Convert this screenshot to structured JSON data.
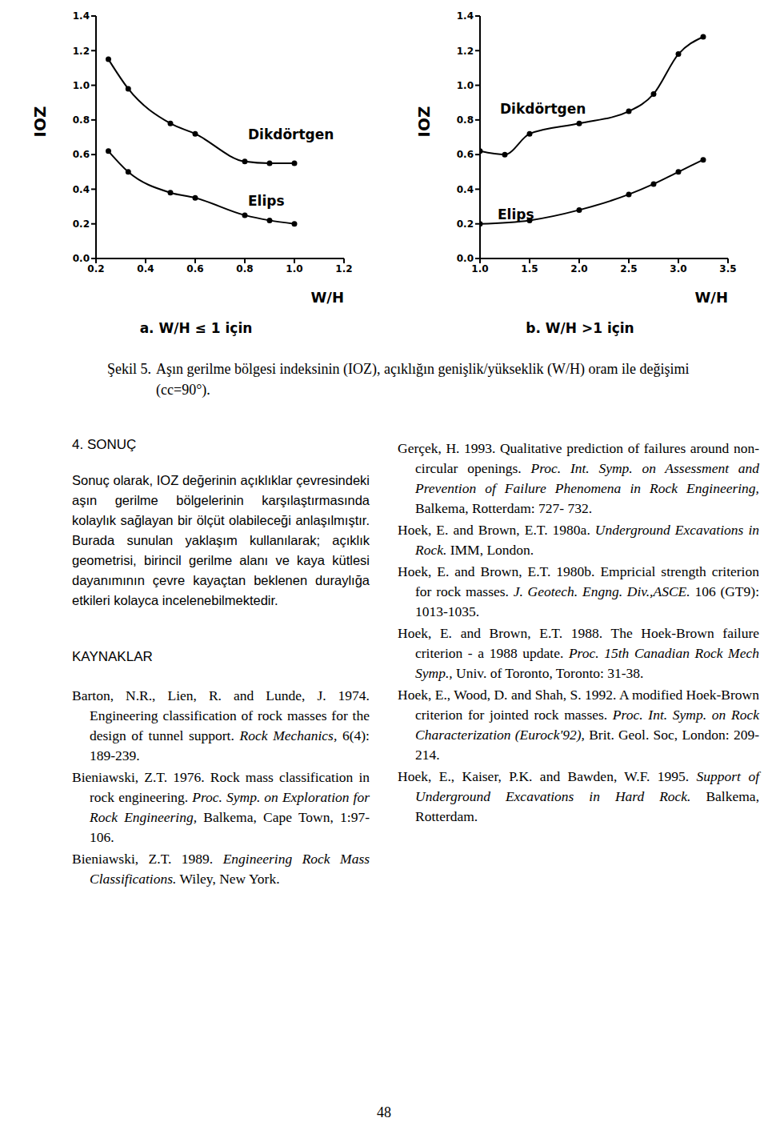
{
  "chart_data": [
    {
      "type": "line",
      "subtitle": "a. W/H ≤ 1 için",
      "x_label": "W/H",
      "y_label": "IOZ",
      "xlim": [
        0.2,
        1.2
      ],
      "xticks": [
        0.2,
        0.4,
        0.6,
        0.8,
        {
          "value": 1,
          "label": "1.0"
        },
        1.2
      ],
      "ylim": [
        0,
        1.4
      ],
      "yticks": [
        {
          "value": 0,
          "label": "0.0"
        },
        0.2,
        0.4,
        0.6,
        0.8,
        {
          "value": 1,
          "label": "1.0"
        },
        1.2,
        1.4
      ],
      "grid": false,
      "series": [
        {
          "name": "Dikdörtgen",
          "color": "#000000",
          "marker": "circle",
          "line_style": "solid",
          "x": [
            0.25,
            0.33,
            0.5,
            0.6,
            0.8,
            0.9,
            1.0
          ],
          "values": [
            1.15,
            0.98,
            0.78,
            0.72,
            0.56,
            0.55,
            0.55
          ]
        },
        {
          "name": "Elips",
          "color": "#000000",
          "marker": "circle",
          "line_style": "solid",
          "x": [
            0.25,
            0.33,
            0.5,
            0.6,
            0.8,
            0.9,
            1.0
          ],
          "values": [
            0.62,
            0.5,
            0.38,
            0.35,
            0.25,
            0.22,
            0.2
          ]
        }
      ]
    },
    {
      "type": "line",
      "subtitle": "b. W/H >1 için",
      "x_label": "W/H",
      "y_label": "IOZ",
      "xlim": [
        1.0,
        3.5
      ],
      "xticks": [
        {
          "value": 1,
          "label": "1.0"
        },
        1.5,
        {
          "value": 2,
          "label": "2.0"
        },
        2.5,
        {
          "value": 3,
          "label": "3.0"
        },
        3.5
      ],
      "ylim": [
        0,
        1.4
      ],
      "yticks": [
        {
          "value": 0,
          "label": "0.0"
        },
        0.2,
        0.4,
        0.6,
        0.8,
        {
          "value": 1,
          "label": "1.0"
        },
        1.2,
        1.4
      ],
      "grid": false,
      "series": [
        {
          "name": "Dikdörtgen",
          "color": "#000000",
          "marker": "circle",
          "line_style": "solid",
          "x": [
            1.0,
            1.25,
            1.5,
            2.0,
            2.5,
            2.75,
            3.0,
            3.25
          ],
          "values": [
            0.62,
            0.6,
            0.72,
            0.78,
            0.85,
            0.95,
            1.18,
            1.28
          ]
        },
        {
          "name": "Elips",
          "color": "#000000",
          "marker": "circle",
          "line_style": "solid",
          "x": [
            1.0,
            1.5,
            2.0,
            2.5,
            2.75,
            3.0,
            3.25
          ],
          "values": [
            0.2,
            0.22,
            0.28,
            0.37,
            0.43,
            0.5,
            0.57
          ]
        }
      ]
    }
  ],
  "caption": {
    "label": "Şekil 5.",
    "text": "Aşın gerilme bölgesi indeksinin (IOZ), açıklığın genişlik/yükseklik (W/H) oram ile değişimi (cc=90°)."
  },
  "left_column": {
    "section_title": "4. SONUÇ",
    "paragraph": "Sonuç olarak, IOZ değerinin açıklıklar çevresindeki aşın gerilme bölgelerinin karşılaştırmasında kolaylık sağlayan bir ölçüt olabileceği anlaşılmıştır. Burada sunulan yaklaşım kullanılarak; açıklık geometrisi, birincil gerilme alanı ve kaya kütlesi dayanımının çevre kayaçtan beklenen duraylığa etkileri kolayca incelenebilmektedir.",
    "references_title": "KAYNAKLAR",
    "references": [
      [
        [
          "Barton, N.R., Lien, R. and Lunde, J. 1974. Engineering classification of rock masses for the design of tunnel support. ",
          false
        ],
        [
          "Rock Mechanics,",
          true
        ],
        [
          " 6(4): 189-239.",
          false
        ]
      ],
      [
        [
          "Bieniawski, Z.T. 1976. Rock mass classification in rock engineering. ",
          false
        ],
        [
          "Proc. Symp. on Exploration for Rock Engineering,",
          true
        ],
        [
          " Balkema, Cape Town, 1:97-106.",
          false
        ]
      ],
      [
        [
          "Bieniawski, Z.T. 1989. ",
          false
        ],
        [
          "Engineering Rock Mass Classifications.",
          true
        ],
        [
          " Wiley, New York.",
          false
        ]
      ]
    ]
  },
  "right_column": {
    "references": [
      [
        [
          "Gerçek, H. 1993. Qualitative prediction of failures around non-circular openings. ",
          false
        ],
        [
          "Proc. Int. Symp. on Assessment and Prevention of Failure Phenomena in Rock Engineering,",
          true
        ],
        [
          " Balkema, Rotterdam: 727- 732.",
          false
        ]
      ],
      [
        [
          "Hoek, E. and Brown, E.T. 1980a. ",
          false
        ],
        [
          "Underground Excavations in Rock.",
          true
        ],
        [
          " IMM, London.",
          false
        ]
      ],
      [
        [
          "Hoek, E. and Brown, E.T. 1980b. Empricial strength criterion for rock masses. ",
          false
        ],
        [
          "J. Geotech. Engng. Div.,ASCE.",
          true
        ],
        [
          " 106 (GT9): 1013-1035.",
          false
        ]
      ],
      [
        [
          "Hoek, E. and Brown, E.T. 1988. The Hoek-Brown failure criterion - a 1988 update. ",
          false
        ],
        [
          "Proc. 15th Canadian Rock Mech Symp.,",
          true
        ],
        [
          " Univ. of Toronto, Toronto: 31-38.",
          false
        ]
      ],
      [
        [
          "Hoek, E., Wood, D. and Shah, S. 1992. A modified Hoek-Brown criterion for jointed rock masses. ",
          false
        ],
        [
          "Proc. Int. Symp. on Rock Characterization (Eurock'92),",
          true
        ],
        [
          " Brit. Geol. Soc, London: 209-214.",
          false
        ]
      ],
      [
        [
          "Hoek, E., Kaiser, P.K. and Bawden, W.F. 1995. ",
          false
        ],
        [
          "Support of Underground Excavations in Hard Rock.",
          true
        ],
        [
          " Balkema, Rotterdam.",
          false
        ]
      ]
    ]
  },
  "page_number": "48"
}
